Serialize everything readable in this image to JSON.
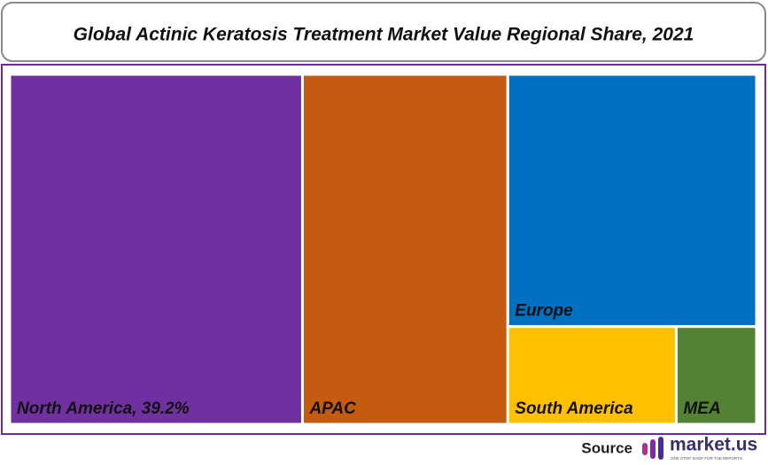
{
  "chart_data": {
    "type": "treemap",
    "title": "Global Actinic Keratosis Treatment Market Value Regional Share, 2021",
    "labels": [
      "North America, 39.2%",
      "APAC",
      "Europe",
      "South America",
      "MEA"
    ],
    "values": [
      39.2,
      27.5,
      24.0,
      6.3,
      3.0
    ],
    "colors": [
      "#7030a0",
      "#c55a11",
      "#0070c0",
      "#ffc000",
      "#548235"
    ]
  },
  "source": {
    "label": "Source",
    "brand": "market.us",
    "tagline": "ONE STOP SHOP FOR THE REPORTS"
  }
}
